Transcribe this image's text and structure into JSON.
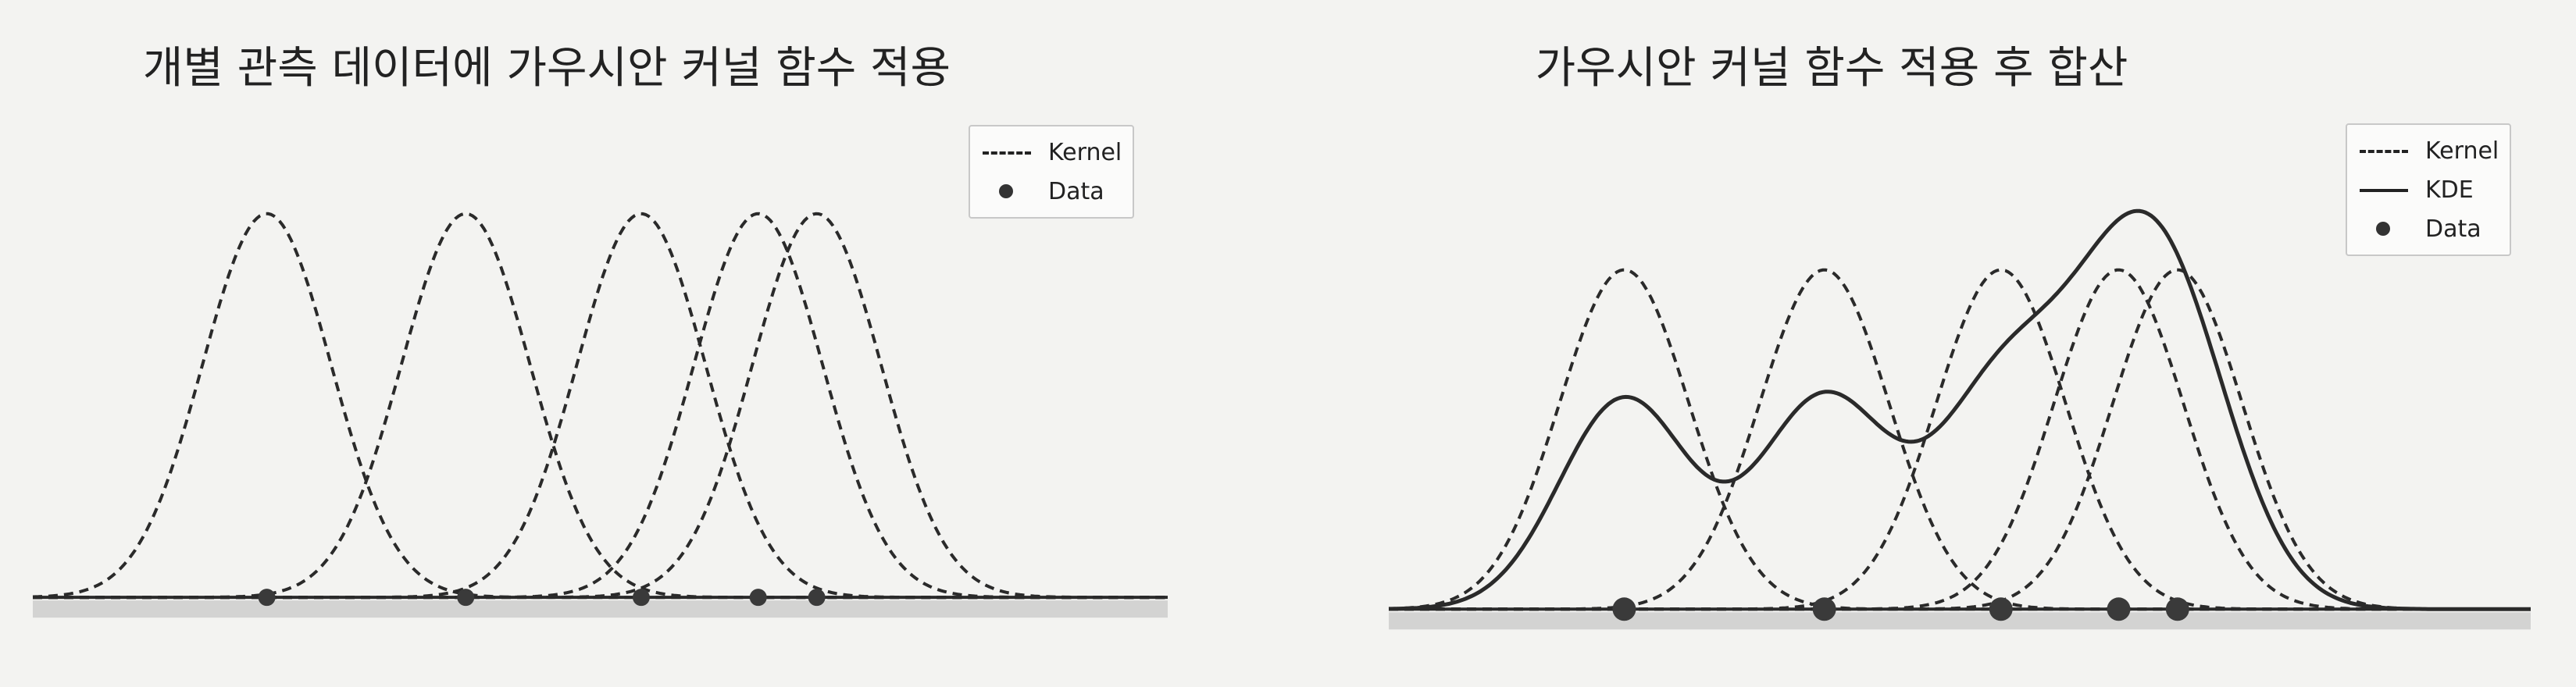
{
  "left": {
    "title": "개별 관측 데이터에 가우시안 커널 함수 적용",
    "legend": {
      "kernel": "Kernel",
      "data": "Data"
    }
  },
  "right": {
    "title": "가우시안 커널 함수 적용 후 합산",
    "legend": {
      "kernel": "Kernel",
      "kde": "KDE",
      "data": "Data"
    }
  },
  "chart_data": [
    {
      "type": "line",
      "title": "개별 관측 데이터에 가우시안 커널 함수 적용",
      "data_points": [
        1.4,
        3.1,
        4.6,
        5.6,
        6.1
      ],
      "kernel_bandwidth": 0.55,
      "kernel_peak": 1.0,
      "xlim": [
        -0.6,
        9.1
      ],
      "ylim": [
        -0.02,
        1.15
      ],
      "series": [
        {
          "name": "Kernel",
          "style": "dashed"
        },
        {
          "name": "Data",
          "style": "markers"
        }
      ],
      "legend_position": "upper-right",
      "grid": false,
      "colors": {
        "line": "#2a2a2a",
        "marker": "#3a3a3a",
        "baseline": "#b8b8b8"
      }
    },
    {
      "type": "line",
      "title": "가우시안 커널 함수 적용 후 합산",
      "data_points": [
        1.4,
        3.1,
        4.6,
        5.6,
        6.1
      ],
      "kernel_bandwidth": 0.55,
      "kernel_peak": 1.0,
      "xlim": [
        -0.6,
        9.1
      ],
      "ylim": [
        -0.02,
        1.45
      ],
      "series": [
        {
          "name": "Kernel",
          "style": "dashed"
        },
        {
          "name": "KDE",
          "style": "solid"
        },
        {
          "name": "Data",
          "style": "markers"
        }
      ],
      "legend_position": "upper-right",
      "grid": false,
      "colors": {
        "line": "#2a2a2a",
        "marker": "#3a3a3a",
        "baseline": "#b8b8b8"
      }
    }
  ]
}
